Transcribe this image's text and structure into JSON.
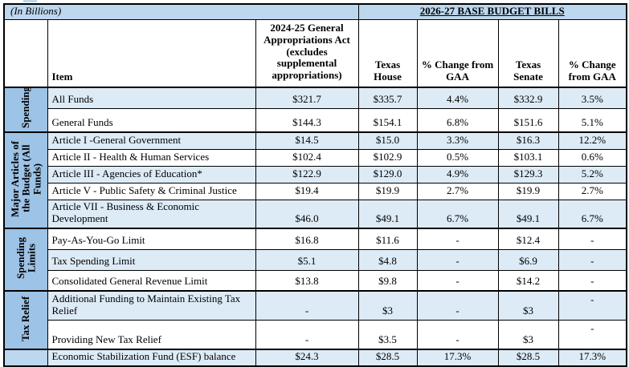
{
  "title_row": {
    "in_billions": "(In Billions)",
    "budget_bills_header": "2026-27 BASE BUDGET BILLS"
  },
  "column_headers": {
    "item": "Item",
    "gaa": "2024-25 General Appropriations Act (excludes supplemental appropriations)",
    "house": "Texas House",
    "house_pct": "% Change from GAA",
    "senate": "Texas Senate",
    "senate_pct": "% Change from GAA"
  },
  "colors": {
    "title_band": "#BDD7EE",
    "group_cell": "#9DC3E6",
    "row_stripe": "#DDEBF7",
    "border": "#000000"
  },
  "groups": [
    {
      "label": "Spending",
      "rows": [
        {
          "item": "All Funds",
          "gaa": "$321.7",
          "house": "$335.7",
          "house_pct": "4.4%",
          "senate": "$332.9",
          "senate_pct": "3.5%"
        },
        {
          "item": "General Funds",
          "gaa": "$144.3",
          "house": "$154.1",
          "house_pct": "6.8%",
          "senate": "$151.6",
          "senate_pct": "5.1%"
        }
      ]
    },
    {
      "label": "Major Articles of the Budget (All Funds)",
      "rows": [
        {
          "item": "Article I -General Government",
          "gaa": "$14.5",
          "house": "$15.0",
          "house_pct": "3.3%",
          "senate": "$16.3",
          "senate_pct": "12.2%"
        },
        {
          "item": "Article II - Health & Human Services",
          "gaa": "$102.4",
          "house": "$102.9",
          "house_pct": "0.5%",
          "senate": "$103.1",
          "senate_pct": "0.6%"
        },
        {
          "item": "Article III - Agencies of Education*",
          "gaa": "$122.9",
          "house": "$129.0",
          "house_pct": "4.9%",
          "senate": "$129.3",
          "senate_pct": "5.2%"
        },
        {
          "item": "Article V - Public Safety & Criminal Justice",
          "gaa": "$19.4",
          "house": "$19.9",
          "house_pct": "2.7%",
          "senate": "$19.9",
          "senate_pct": "2.7%"
        },
        {
          "item": "Article VII - Business & Economic Development",
          "gaa": "$46.0",
          "house": "$49.1",
          "house_pct": "6.7%",
          "senate": "$49.1",
          "senate_pct": "6.7%"
        }
      ]
    },
    {
      "label": "Spending Limits",
      "rows": [
        {
          "item": "Pay-As-You-Go Limit",
          "gaa": "$16.8",
          "house": "$11.6",
          "house_pct": "-",
          "senate": "$12.4",
          "senate_pct": "-"
        },
        {
          "item": "Tax Spending Limit",
          "gaa": "$5.1",
          "house": "$4.8",
          "house_pct": "-",
          "senate": "$6.9",
          "senate_pct": "-"
        },
        {
          "item": "Consolidated General Revenue Limit",
          "gaa": "$13.8",
          "house": "$9.8",
          "house_pct": "-",
          "senate": "$14.2",
          "senate_pct": "-"
        }
      ]
    },
    {
      "label": "Tax Relief",
      "rows": [
        {
          "item": "Additional Funding to Maintain Existing Tax Relief",
          "gaa": "-",
          "house": "$3",
          "house_pct": "-",
          "senate": "$3",
          "senate_pct": "-"
        },
        {
          "item": "Providing New Tax Relief",
          "gaa": "-",
          "house": "$3.5",
          "house_pct": "-",
          "senate": "$3",
          "senate_pct": "-"
        }
      ]
    },
    {
      "label": "",
      "rows": [
        {
          "item": "Economic Stabilization Fund (ESF) balance",
          "gaa": "$24.3",
          "house": "$28.5",
          "house_pct": "17.3%",
          "senate": "$28.5",
          "senate_pct": "17.3%"
        }
      ]
    }
  ]
}
